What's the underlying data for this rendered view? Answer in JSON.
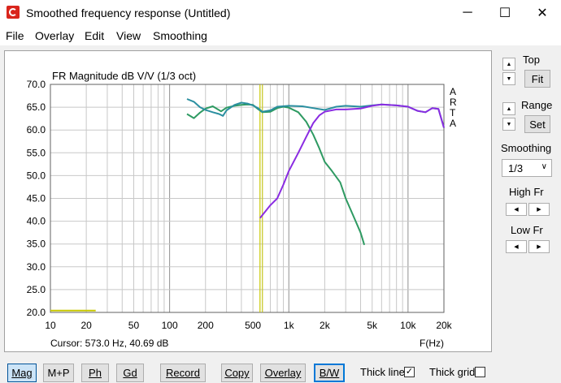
{
  "window": {
    "title": "Smoothed frequency response (Untitled)",
    "minimize": "─",
    "maximize": "☐",
    "close": "✕"
  },
  "menu": [
    "File",
    "Overlay",
    "Edit",
    "View",
    "Smoothing"
  ],
  "plot": {
    "cursor_readout": "Cursor: 573.0 Hz, 40.69 dB",
    "right_letters": [
      "A",
      "R",
      "T",
      "A"
    ]
  },
  "chart_data": {
    "type": "line",
    "title": "FR Magnitude dB V/V (1/3 oct)",
    "xlabel": "F(Hz)",
    "ylabel": "",
    "xscale": "log",
    "xlim": [
      10,
      20000
    ],
    "ylim": [
      20,
      70
    ],
    "grid": true,
    "x_tick_labels": [
      {
        "x": 10,
        "label": "10"
      },
      {
        "x": 20,
        "label": "20"
      },
      {
        "x": 50,
        "label": "50"
      },
      {
        "x": 100,
        "label": "100"
      },
      {
        "x": 200,
        "label": "200"
      },
      {
        "x": 500,
        "label": "500"
      },
      {
        "x": 1000,
        "label": "1k"
      },
      {
        "x": 2000,
        "label": "2k"
      },
      {
        "x": 5000,
        "label": "5k"
      },
      {
        "x": 10000,
        "label": "10k"
      },
      {
        "x": 20000,
        "label": "20k"
      }
    ],
    "y_tick_labels": [
      "20.0",
      "25.0",
      "30.0",
      "35.0",
      "40.0",
      "45.0",
      "50.0",
      "55.0",
      "60.0",
      "65.0",
      "70.0"
    ],
    "cursor_x": 573,
    "series": [
      {
        "color": "#2e9a62",
        "points": [
          [
            140,
            63.5
          ],
          [
            160,
            62.6
          ],
          [
            180,
            63.8
          ],
          [
            200,
            64.7
          ],
          [
            230,
            65.2
          ],
          [
            270,
            64.1
          ],
          [
            300,
            64.9
          ],
          [
            350,
            65.3
          ],
          [
            400,
            65.5
          ],
          [
            450,
            65.6
          ],
          [
            500,
            65.5
          ],
          [
            550,
            64.6
          ],
          [
            600,
            63.9
          ],
          [
            700,
            64.0
          ],
          [
            800,
            64.8
          ],
          [
            900,
            65.1
          ],
          [
            1000,
            64.9
          ],
          [
            1200,
            63.9
          ],
          [
            1400,
            61.8
          ],
          [
            1600,
            59.0
          ],
          [
            1800,
            56.0
          ],
          [
            2000,
            53.0
          ],
          [
            2300,
            51.0
          ],
          [
            2700,
            48.5
          ],
          [
            3000,
            45.0
          ],
          [
            3500,
            41.0
          ],
          [
            4000,
            37.5
          ],
          [
            4300,
            34.8
          ]
        ]
      },
      {
        "color": "#2b8fa0",
        "points": [
          [
            140,
            66.8
          ],
          [
            160,
            66.2
          ],
          [
            180,
            65.0
          ],
          [
            200,
            64.4
          ],
          [
            230,
            63.9
          ],
          [
            260,
            63.5
          ],
          [
            280,
            63.1
          ],
          [
            300,
            64.3
          ],
          [
            350,
            65.5
          ],
          [
            400,
            66.0
          ],
          [
            450,
            65.8
          ],
          [
            500,
            65.4
          ],
          [
            550,
            64.8
          ],
          [
            600,
            64.0
          ],
          [
            700,
            64.3
          ],
          [
            800,
            65.1
          ],
          [
            1000,
            65.3
          ],
          [
            1300,
            65.2
          ],
          [
            1600,
            64.8
          ],
          [
            2000,
            64.4
          ],
          [
            2500,
            65.1
          ],
          [
            3000,
            65.3
          ],
          [
            4000,
            65.1
          ],
          [
            5000,
            65.4
          ],
          [
            6000,
            65.6
          ],
          [
            8000,
            65.4
          ],
          [
            10000,
            65.1
          ],
          [
            12000,
            64.2
          ],
          [
            14000,
            63.9
          ],
          [
            16000,
            64.8
          ],
          [
            18000,
            64.6
          ],
          [
            20000,
            60.5
          ]
        ]
      },
      {
        "color": "#8a2be2",
        "points": [
          [
            573,
            40.69
          ],
          [
            700,
            43.5
          ],
          [
            800,
            45.0
          ],
          [
            900,
            48.0
          ],
          [
            1000,
            51.0
          ],
          [
            1200,
            55.0
          ],
          [
            1400,
            58.5
          ],
          [
            1600,
            61.5
          ],
          [
            1800,
            63.2
          ],
          [
            2000,
            64.0
          ],
          [
            2500,
            64.5
          ],
          [
            3000,
            64.5
          ],
          [
            4000,
            64.7
          ],
          [
            5000,
            65.3
          ],
          [
            6000,
            65.6
          ],
          [
            8000,
            65.4
          ],
          [
            10000,
            65.1
          ],
          [
            12000,
            64.2
          ],
          [
            14000,
            63.9
          ],
          [
            16000,
            64.8
          ],
          [
            18000,
            64.6
          ],
          [
            20000,
            60.5
          ]
        ]
      },
      {
        "color": "#c8c800",
        "points": [
          [
            10,
            20.4
          ],
          [
            24,
            20.4
          ]
        ]
      }
    ]
  },
  "controls": {
    "top_label": "Top",
    "fit_label": "Fit",
    "range_label": "Range",
    "set_label": "Set",
    "smoothing_label": "Smoothing",
    "smoothing_value": "1/3",
    "high_fr_label": "High Fr",
    "low_fr_label": "Low Fr"
  },
  "toolbar": {
    "mag_label": "Mag",
    "mp_label": "M+P",
    "ph_label": "Ph",
    "gd_label": "Gd",
    "record_label": "Record",
    "copy_label": "Copy",
    "overlay_label": "Overlay",
    "bw_label": "B/W",
    "thick_line_label": "Thick line",
    "thick_line_checked": true,
    "thick_grid_label": "Thick grid",
    "thick_grid_checked": false
  }
}
